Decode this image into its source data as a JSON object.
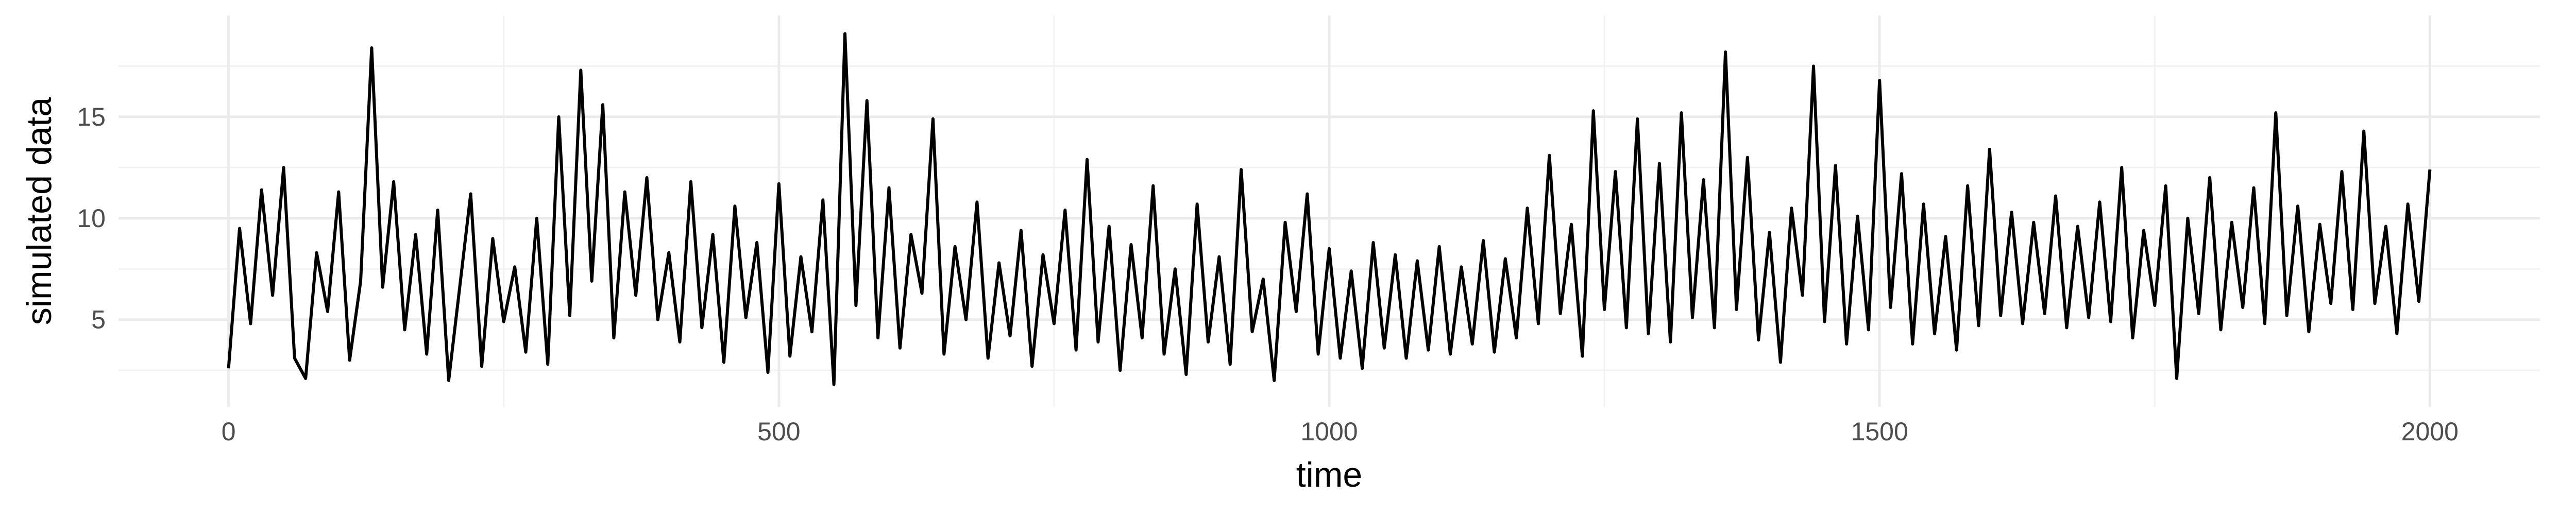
{
  "chart_data": {
    "type": "line",
    "title": "",
    "xlabel": "time",
    "ylabel": "simulated data",
    "xlim": [
      -100,
      2100
    ],
    "ylim": [
      0.7,
      20.0
    ],
    "x_ticks": [
      0,
      500,
      1000,
      1500,
      2000
    ],
    "y_ticks": [
      5,
      10,
      15
    ],
    "x_tick_labels": [
      "0",
      "500",
      "1000",
      "1500",
      "2000"
    ],
    "y_tick_labels": [
      "5",
      "10",
      "15"
    ],
    "grid": true,
    "legend": "none",
    "series": [
      {
        "color": "#000000",
        "x": [
          0,
          10,
          20,
          30,
          40,
          50,
          60,
          70,
          80,
          90,
          100,
          110,
          120,
          130,
          140,
          150,
          160,
          170,
          180,
          190,
          200,
          210,
          220,
          230,
          240,
          250,
          260,
          270,
          280,
          290,
          300,
          310,
          320,
          330,
          340,
          350,
          360,
          370,
          380,
          390,
          400,
          410,
          420,
          430,
          440,
          450,
          460,
          470,
          480,
          490,
          500,
          510,
          520,
          530,
          540,
          550,
          560,
          570,
          580,
          590,
          600,
          610,
          620,
          630,
          640,
          650,
          660,
          670,
          680,
          690,
          700,
          710,
          720,
          730,
          740,
          750,
          760,
          770,
          780,
          790,
          800,
          810,
          820,
          830,
          840,
          850,
          860,
          870,
          880,
          890,
          900,
          910,
          920,
          930,
          940,
          950,
          960,
          970,
          980,
          990,
          1000,
          1010,
          1020,
          1030,
          1040,
          1050,
          1060,
          1070,
          1080,
          1090,
          1100,
          1110,
          1120,
          1130,
          1140,
          1150,
          1160,
          1170,
          1180,
          1190,
          1200,
          1210,
          1220,
          1230,
          1240,
          1250,
          1260,
          1270,
          1280,
          1290,
          1300,
          1310,
          1320,
          1330,
          1340,
          1350,
          1360,
          1370,
          1380,
          1390,
          1400,
          1410,
          1420,
          1430,
          1440,
          1450,
          1460,
          1470,
          1480,
          1490,
          1500,
          1510,
          1520,
          1530,
          1540,
          1550,
          1560,
          1570,
          1580,
          1590,
          1600,
          1610,
          1620,
          1630,
          1640,
          1650,
          1660,
          1670,
          1680,
          1690,
          1700,
          1710,
          1720,
          1730,
          1740,
          1750,
          1760,
          1770,
          1780,
          1790,
          1800,
          1810,
          1820,
          1830,
          1840,
          1850,
          1860,
          1870,
          1880,
          1890,
          1900,
          1910,
          1920,
          1930,
          1940,
          1950,
          1960,
          1970,
          1980,
          1990,
          2000
        ],
        "y": [
          2.6,
          9.5,
          4.8,
          11.4,
          6.2,
          12.5,
          3.1,
          2.1,
          8.3,
          5.4,
          11.3,
          3.0,
          6.9,
          18.4,
          6.6,
          11.8,
          4.5,
          9.2,
          3.3,
          10.4,
          2.0,
          6.6,
          11.2,
          2.7,
          9.0,
          4.9,
          7.6,
          3.4,
          10.0,
          2.8,
          15.0,
          5.2,
          17.3,
          6.9,
          15.6,
          4.1,
          11.3,
          6.2,
          12.0,
          5.0,
          8.3,
          3.9,
          11.8,
          4.6,
          9.2,
          2.9,
          10.6,
          5.1,
          8.8,
          2.4,
          11.7,
          3.2,
          8.1,
          4.4,
          10.9,
          1.8,
          19.1,
          5.7,
          15.8,
          4.1,
          11.5,
          3.6,
          9.2,
          6.3,
          14.9,
          3.3,
          8.6,
          5.0,
          10.8,
          3.1,
          7.8,
          4.2,
          9.4,
          2.7,
          8.2,
          4.8,
          10.4,
          3.5,
          12.9,
          3.9,
          9.6,
          2.5,
          8.7,
          4.1,
          11.6,
          3.3,
          7.5,
          2.3,
          10.7,
          3.9,
          8.1,
          2.8,
          12.4,
          4.4,
          7.0,
          2.0,
          9.8,
          5.4,
          11.2,
          3.3,
          8.5,
          3.1,
          7.4,
          2.6,
          8.8,
          3.6,
          8.2,
          3.1,
          7.9,
          3.5,
          8.6,
          3.3,
          7.6,
          3.8,
          8.9,
          3.4,
          8.0,
          4.1,
          10.5,
          4.8,
          13.1,
          5.3,
          9.7,
          3.2,
          15.3,
          5.5,
          12.3,
          4.6,
          14.9,
          4.3,
          12.7,
          3.9,
          15.2,
          5.1,
          11.9,
          4.6,
          18.2,
          5.5,
          13.0,
          4.0,
          9.3,
          2.9,
          10.5,
          6.2,
          17.5,
          4.9,
          12.6,
          3.8,
          10.1,
          4.5,
          16.8,
          5.6,
          12.2,
          3.8,
          10.7,
          4.3,
          9.1,
          3.5,
          11.6,
          4.7,
          13.4,
          5.2,
          10.3,
          4.8,
          9.8,
          5.3,
          11.1,
          4.6,
          9.6,
          5.1,
          10.8,
          4.9,
          12.5,
          4.1,
          9.4,
          5.7,
          11.6,
          2.1,
          10.0,
          5.3,
          12.0,
          4.5,
          9.8,
          5.6,
          11.5,
          4.8,
          15.2,
          5.2,
          10.6,
          4.4,
          9.7,
          5.8,
          12.3,
          5.5,
          14.3,
          5.8,
          9.6,
          4.3,
          10.7,
          5.9,
          12.4
        ]
      }
    ]
  }
}
